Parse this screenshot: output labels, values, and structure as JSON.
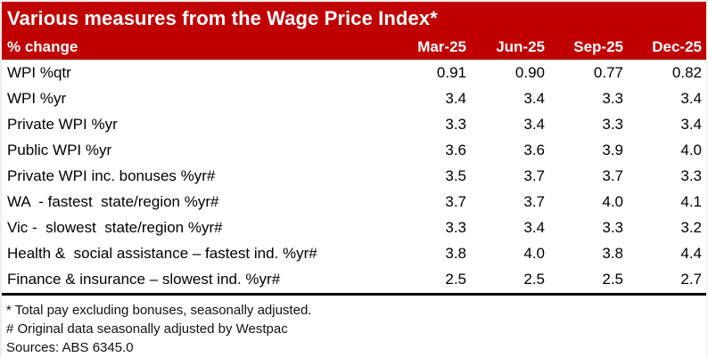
{
  "chart_data": {
    "type": "table",
    "title": "Various measures from the Wage Price Index*",
    "row_header_label": "% change",
    "columns": [
      "Mar-25",
      "Jun-25",
      "Sep-25",
      "Dec-25"
    ],
    "rows": [
      {
        "label": "WPI %qtr",
        "values": [
          "0.91",
          "0.90",
          "0.77",
          "0.82"
        ]
      },
      {
        "label": "WPI %yr",
        "values": [
          "3.4",
          "3.4",
          "3.3",
          "3.4"
        ]
      },
      {
        "label": "Private WPI %yr",
        "values": [
          "3.3",
          "3.4",
          "3.3",
          "3.4"
        ]
      },
      {
        "label": "Public WPI %yr",
        "values": [
          "3.6",
          "3.6",
          "3.9",
          "4.0"
        ]
      },
      {
        "label": "Private WPI inc. bonuses %yr#",
        "values": [
          "3.5",
          "3.7",
          "3.7",
          "3.3"
        ]
      },
      {
        "label": "WA  - fastest  state/region %yr#",
        "values": [
          "3.7",
          "3.7",
          "4.0",
          "4.1"
        ]
      },
      {
        "label": "Vic -  slowest  state/region %yr#",
        "values": [
          "3.3",
          "3.4",
          "3.3",
          "3.2"
        ]
      },
      {
        "label": "Health &  social assistance – fastest ind. %yr#",
        "values": [
          "3.8",
          "4.0",
          "3.8",
          "4.4"
        ]
      },
      {
        "label": "Finance & insurance – slowest ind. %yr#",
        "values": [
          "2.5",
          "2.5",
          "2.5",
          "2.7"
        ]
      }
    ],
    "footnotes": [
      "* Total pay excluding bonuses, seasonally adjusted.",
      "# Original data seasonally adjusted by Westpac",
      "Sources: ABS 6345.0"
    ],
    "colors": {
      "header_bg": "#C00000",
      "header_text": "#FFFFFF",
      "body_text": "#000000",
      "rule": "#000000"
    },
    "layout_hints": {
      "numeric_alignment": "right",
      "gridlines": "none",
      "bottom_rule": true
    }
  }
}
